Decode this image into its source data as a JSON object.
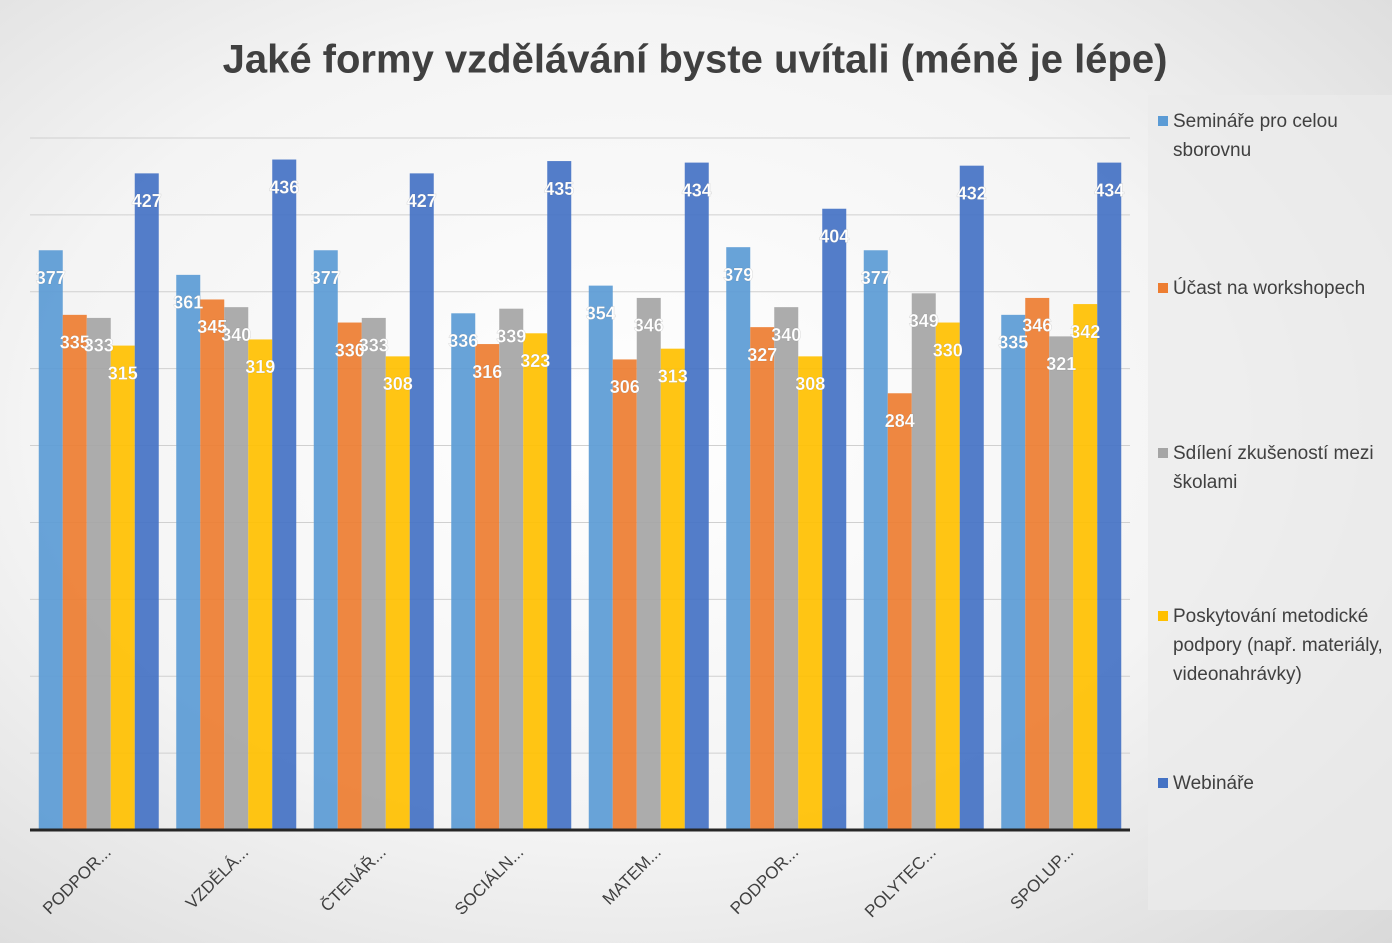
{
  "chart_data": {
    "type": "bar",
    "title": "Jaké formy vzdělávání byste uvítali (méně je lépe)",
    "categories": [
      "PODPOR...",
      "VZDĚLÁ...",
      "ČTENÁŘ...",
      "SOCIÁLN...",
      "MATEM...",
      "PODPOR...",
      "POLYTEC...",
      "SPOLUP..."
    ],
    "series": [
      {
        "name": "Semináře pro celou sborovnu",
        "color": "#5b9bd5",
        "values": [
          377,
          361,
          377,
          336,
          354,
          379,
          377,
          335
        ]
      },
      {
        "name": "Účast na workshopech",
        "color": "#ed7d31",
        "values": [
          335,
          345,
          330,
          316,
          306,
          327,
          284,
          346
        ]
      },
      {
        "name": "Sdílení zkušeností mezi školami",
        "color": "#a5a5a5",
        "values": [
          333,
          340,
          333,
          339,
          346,
          340,
          349,
          321
        ]
      },
      {
        "name": "Poskytování metodické podpory (např. materiály, videonahrávky)",
        "color": "#ffc000",
        "values": [
          315,
          319,
          308,
          323,
          313,
          308,
          330,
          342
        ]
      },
      {
        "name": "Webináře",
        "color": "#4472c4",
        "values": [
          427,
          436,
          427,
          435,
          434,
          404,
          432,
          434
        ]
      }
    ],
    "ylim": [
      0,
      450
    ],
    "yticks": [
      0,
      50,
      100,
      150,
      200,
      250,
      300,
      350,
      400,
      450
    ],
    "grid": true,
    "legend": "right"
  }
}
